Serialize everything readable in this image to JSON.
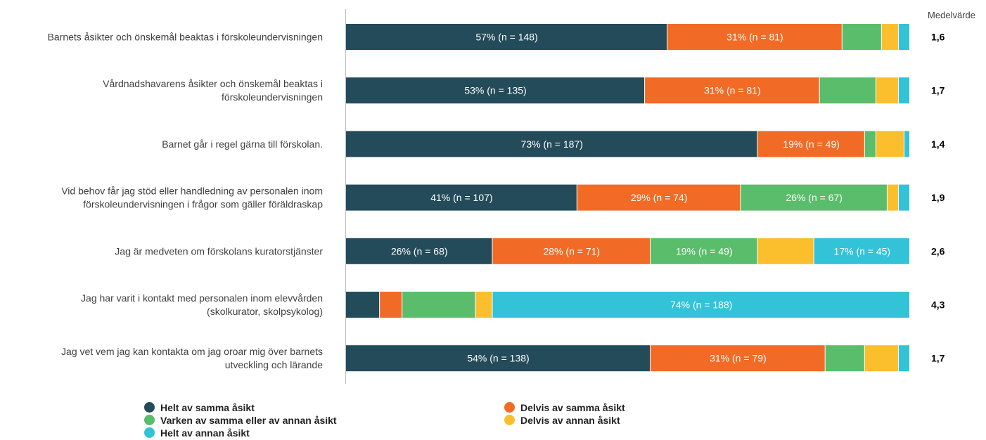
{
  "chart_data": {
    "type": "bar",
    "orientation": "horizontal",
    "stacked": true,
    "grid": false,
    "legend_position": "bottom",
    "mean_header": "Medelvärde",
    "categories": [
      [
        "Barnets åsikter och önskemål beaktas i förskoleundervisningen"
      ],
      [
        "Vårdnadshavarens åsikter och önskemål beaktas i",
        "förskoleundervisningen"
      ],
      [
        "Barnet går i regel gärna till förskolan."
      ],
      [
        "Vid behov får jag stöd eller handledning av personalen inom",
        "förskoleundervisningen i frågor som gäller föräldraskap"
      ],
      [
        "Jag är medveten om förskolans kuratorstjänster"
      ],
      [
        "Jag har varit i kontakt med personalen inom elevvården",
        "(skolkurator, skolpsykolog)"
      ],
      [
        "Jag vet vem jag kan kontakta om jag oroar mig över barnets",
        "utveckling och lärande"
      ]
    ],
    "means": [
      "1,6",
      "1,7",
      "1,4",
      "1,9",
      "2,6",
      "4,3",
      "1,7"
    ],
    "series": [
      {
        "name": "Helt av samma åsikt",
        "color": "#244b5a",
        "values": [
          57,
          53,
          73,
          41,
          26,
          6,
          54
        ],
        "labels": [
          "57% (n = 148)",
          "53% (n = 135)",
          "73% (n = 187)",
          "41% (n = 107)",
          "26% (n = 68)",
          "",
          "54% (n = 138)"
        ]
      },
      {
        "name": "Delvis av samma åsikt",
        "color": "#f26b26",
        "values": [
          31,
          31,
          19,
          29,
          28,
          4,
          31
        ],
        "labels": [
          "31% (n = 81)",
          "31% (n = 81)",
          "19% (n = 49)",
          "29% (n = 74)",
          "28% (n = 71)",
          "",
          "31% (n = 79)"
        ]
      },
      {
        "name": "Varken av samma eller av annan åsikt",
        "color": "#5abd6b",
        "values": [
          7,
          10,
          2,
          26,
          19,
          13,
          7
        ],
        "labels": [
          "",
          "",
          "",
          "26% (n = 67)",
          "19% (n = 49)",
          "",
          ""
        ]
      },
      {
        "name": "Delvis av annan åsikt",
        "color": "#fbbf2e",
        "values": [
          3,
          4,
          5,
          2,
          10,
          3,
          6
        ],
        "labels": [
          "",
          "",
          "",
          "",
          "",
          "",
          ""
        ]
      },
      {
        "name": "Helt av annan åsikt",
        "color": "#33c3d9",
        "values": [
          2,
          2,
          1,
          2,
          17,
          74,
          2
        ],
        "labels": [
          "",
          "",
          "",
          "",
          "17% (n = 45)",
          "74% (n = 188)",
          ""
        ]
      }
    ],
    "xlim": [
      0,
      100
    ]
  }
}
